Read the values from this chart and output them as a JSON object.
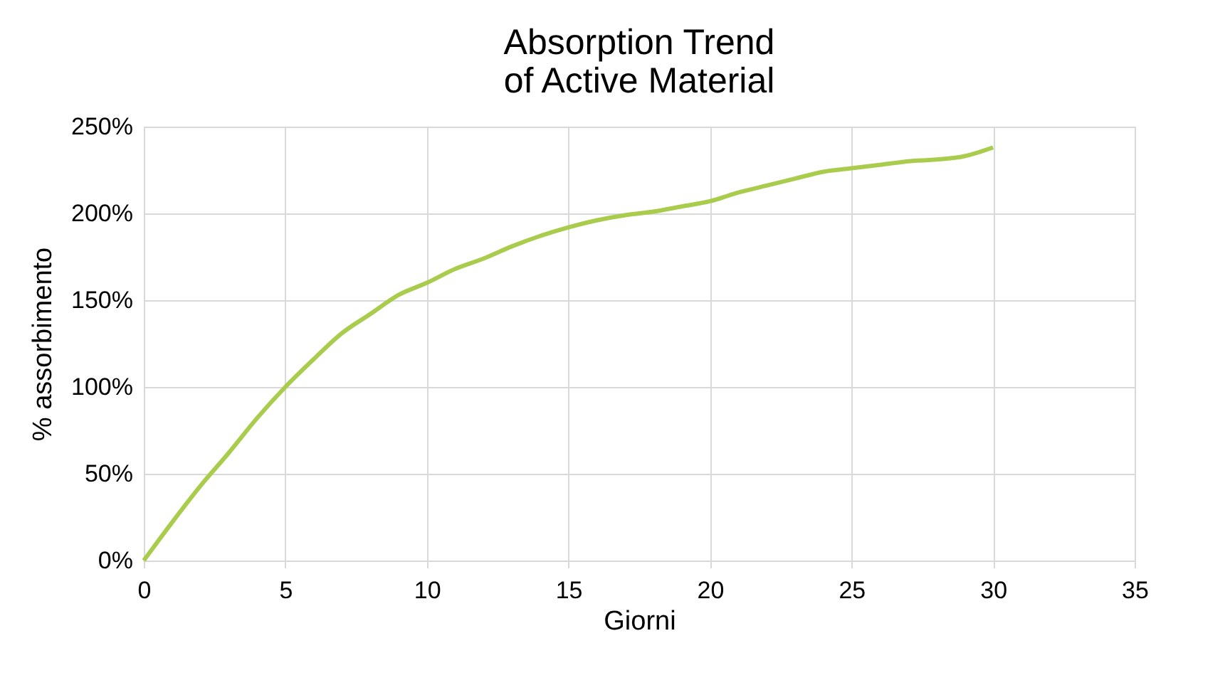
{
  "chart_data": {
    "type": "line",
    "title": "Absorption Trend\nof Active Material",
    "xlabel": "Giorni",
    "ylabel": "% assorbimento",
    "x": [
      0,
      1,
      2,
      3,
      4,
      5,
      6,
      7,
      8,
      9,
      10,
      11,
      12,
      13,
      14,
      15,
      16,
      17,
      18,
      19,
      20,
      21,
      22,
      23,
      24,
      25,
      26,
      27,
      28,
      29,
      30
    ],
    "series": [
      {
        "color": "#a9cc4d",
        "values": [
          0,
          22,
          43,
          62,
          82,
          100,
          116,
          131,
          142,
          153,
          160,
          168,
          174,
          181,
          187,
          192,
          196,
          199,
          201,
          204,
          207,
          212,
          216,
          220,
          224,
          226,
          228,
          230,
          231,
          233,
          238
        ]
      }
    ],
    "xlim": [
      0,
      35
    ],
    "xticks": [
      0,
      5,
      10,
      15,
      20,
      25,
      30,
      35
    ],
    "ylim": [
      0,
      250
    ],
    "yticks": [
      {
        "value": 0,
        "label": "0%"
      },
      {
        "value": 50,
        "label": "50%"
      },
      {
        "value": 100,
        "label": "100%"
      },
      {
        "value": 150,
        "label": "150%"
      },
      {
        "value": 200,
        "label": "200%"
      },
      {
        "value": 250,
        "label": "250%"
      }
    ],
    "grid": true,
    "legend": false,
    "marker": "none",
    "line_style": "solid"
  }
}
